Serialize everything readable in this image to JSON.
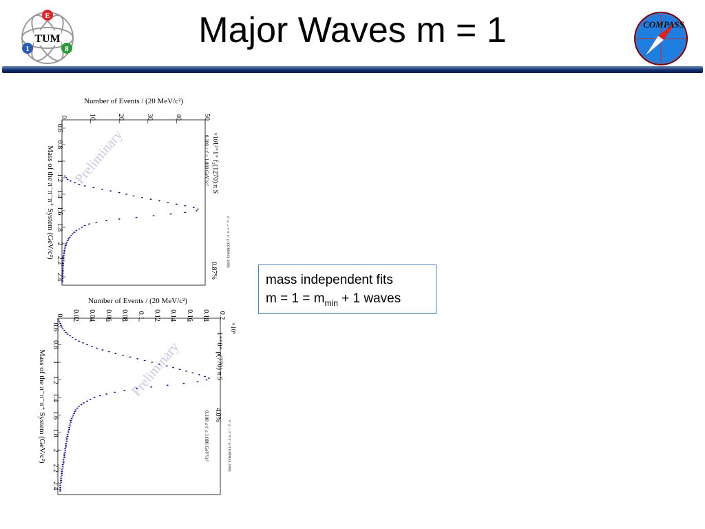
{
  "slide": {
    "title": "Major Waves m = 1",
    "textbox": {
      "line1": "mass independent fits",
      "line2_prefix": "m = 1 = m",
      "line2_sub": "min",
      "line2_suffix": " + 1 waves"
    }
  },
  "logos": {
    "tum_letters": [
      "E",
      "TUM",
      "1",
      "8"
    ],
    "compass_text": "COMPASS"
  },
  "colors": {
    "header_bar": "#0d2a6b",
    "textbox_border": "#4f81bd",
    "data_points": "#000080",
    "watermark": "#c8c8e6"
  },
  "chart_data": [
    {
      "type": "scatter",
      "ylabel": "Number of Events / (20 MeV/c²)",
      "xlabel": "Mass of the π⁻π⁻π⁺ System (GeV/c²)",
      "multiplier": "×10³",
      "wave_label": "1²⁺1⁺ f₂(1270) π S",
      "t_range": "0.100 ≤ t' ≤ 1.000 GeV²/c²",
      "reaction": "π⁻ p → π⁻π⁻π⁺ p (COMPASS 2008)",
      "fraction": "0.87%",
      "watermark": "Preliminary",
      "x_ticks": [
        "0.6",
        "0.8",
        "1",
        "1.2",
        "1.4",
        "1.6",
        "1.8",
        "2",
        "2.2",
        "2.4"
      ],
      "y_ticks": [
        "0",
        "10",
        "20",
        "30",
        "40",
        "50"
      ],
      "xlim": [
        0.5,
        2.5
      ],
      "ylim": [
        0,
        50
      ],
      "x": [
        1.18,
        1.2,
        1.22,
        1.24,
        1.26,
        1.28,
        1.3,
        1.32,
        1.34,
        1.36,
        1.38,
        1.4,
        1.42,
        1.44,
        1.46,
        1.48,
        1.5,
        1.52,
        1.54,
        1.56,
        1.58,
        1.6,
        1.62,
        1.64,
        1.66,
        1.68,
        1.7,
        1.72,
        1.74,
        1.76,
        1.78,
        1.8,
        1.82,
        1.84,
        1.86,
        1.88,
        1.9,
        1.92,
        1.94,
        1.96,
        1.98,
        2.0,
        2.02,
        2.04,
        2.06,
        2.08,
        2.1,
        2.12,
        2.14,
        2.16,
        2.18,
        2.2,
        2.22,
        2.24,
        2.26,
        2.28,
        2.3,
        2.32,
        2.34,
        2.36,
        2.38,
        2.4,
        2.42,
        2.44,
        2.46
      ],
      "y": [
        1,
        1.5,
        2,
        3,
        4.5,
        6,
        8,
        11,
        14,
        17,
        20,
        22.5,
        25,
        28,
        31,
        34,
        37,
        40,
        43,
        46,
        47.5,
        47,
        43,
        38,
        32,
        26,
        20,
        15.5,
        12,
        9.5,
        8,
        7,
        6,
        5,
        4.3,
        3.7,
        3.2,
        2.7,
        2.3,
        2,
        1.7,
        1.5,
        1.3,
        1.1,
        1,
        0.9,
        0.8,
        0.7,
        0.6,
        0.55,
        0.5,
        0.45,
        0.4,
        0.38,
        0.35,
        0.32,
        0.3,
        0.28,
        0.26,
        0.24,
        0.22,
        0.2,
        0.2,
        0.18,
        0.17
      ]
    },
    {
      "type": "scatter",
      "ylabel": "Number of Events / (20 MeV/c²)",
      "xlabel": "Mass of the π⁻π⁻π⁺ System (GeV/c²)",
      "multiplier": "×10⁶",
      "wave_label": "1⁺⁺0⁺ ρ(770) π S",
      "t_range": "0.100 ≤ t' ≤ 1.000 GeV²/c²",
      "reaction": "π⁻ p → π⁻π⁻π⁺ p (COMPASS 2008)",
      "fraction": "4.0%",
      "watermark": "Preliminary",
      "x_ticks": [
        "0.6",
        "0.8",
        "1",
        "1.2",
        "1.4",
        "1.6",
        "1.8",
        "2",
        "2.2",
        "2.4"
      ],
      "y_ticks": [
        "0",
        "0.02",
        "0.04",
        "0.06",
        "0.08",
        "0.1",
        "0.12",
        "0.14",
        "0.16",
        "0.18",
        "0.2"
      ],
      "xlim": [
        0.5,
        2.5
      ],
      "ylim": [
        0,
        0.2
      ],
      "x": [
        0.52,
        0.54,
        0.56,
        0.58,
        0.6,
        0.62,
        0.64,
        0.66,
        0.68,
        0.7,
        0.72,
        0.74,
        0.76,
        0.78,
        0.8,
        0.82,
        0.84,
        0.86,
        0.88,
        0.9,
        0.92,
        0.94,
        0.96,
        0.98,
        1.0,
        1.02,
        1.04,
        1.06,
        1.08,
        1.1,
        1.12,
        1.14,
        1.16,
        1.18,
        1.2,
        1.22,
        1.24,
        1.26,
        1.28,
        1.3,
        1.32,
        1.34,
        1.36,
        1.38,
        1.4,
        1.42,
        1.44,
        1.46,
        1.48,
        1.5,
        1.52,
        1.54,
        1.56,
        1.58,
        1.6,
        1.62,
        1.64,
        1.66,
        1.68,
        1.7,
        1.72,
        1.74,
        1.76,
        1.78,
        1.8,
        1.82,
        1.84,
        1.86,
        1.88,
        1.9,
        1.92,
        1.94,
        1.96,
        1.98,
        2.0,
        2.02,
        2.04,
        2.06,
        2.08,
        2.1,
        2.12,
        2.14,
        2.16,
        2.18,
        2.2,
        2.22,
        2.24,
        2.26,
        2.28,
        2.3,
        2.32,
        2.34,
        2.36,
        2.38,
        2.4,
        2.42,
        2.44,
        2.46
      ],
      "y": [
        0.001,
        0.002,
        0.003,
        0.004,
        0.005,
        0.006,
        0.008,
        0.01,
        0.012,
        0.015,
        0.018,
        0.022,
        0.026,
        0.031,
        0.036,
        0.042,
        0.048,
        0.055,
        0.063,
        0.071,
        0.08,
        0.089,
        0.098,
        0.107,
        0.116,
        0.125,
        0.134,
        0.142,
        0.15,
        0.158,
        0.166,
        0.174,
        0.181,
        0.186,
        0.183,
        0.172,
        0.155,
        0.135,
        0.115,
        0.097,
        0.082,
        0.07,
        0.06,
        0.052,
        0.045,
        0.04,
        0.036,
        0.032,
        0.029,
        0.026,
        0.024,
        0.022,
        0.021,
        0.02,
        0.019,
        0.018,
        0.017,
        0.016,
        0.016,
        0.015,
        0.015,
        0.014,
        0.014,
        0.013,
        0.013,
        0.012,
        0.012,
        0.011,
        0.011,
        0.011,
        0.01,
        0.01,
        0.01,
        0.009,
        0.009,
        0.009,
        0.008,
        0.008,
        0.008,
        0.007,
        0.007,
        0.007,
        0.006,
        0.006,
        0.006,
        0.005,
        0.005,
        0.005,
        0.005,
        0.004,
        0.004,
        0.004,
        0.004,
        0.003,
        0.003,
        0.003,
        0.003,
        0.003
      ]
    }
  ]
}
